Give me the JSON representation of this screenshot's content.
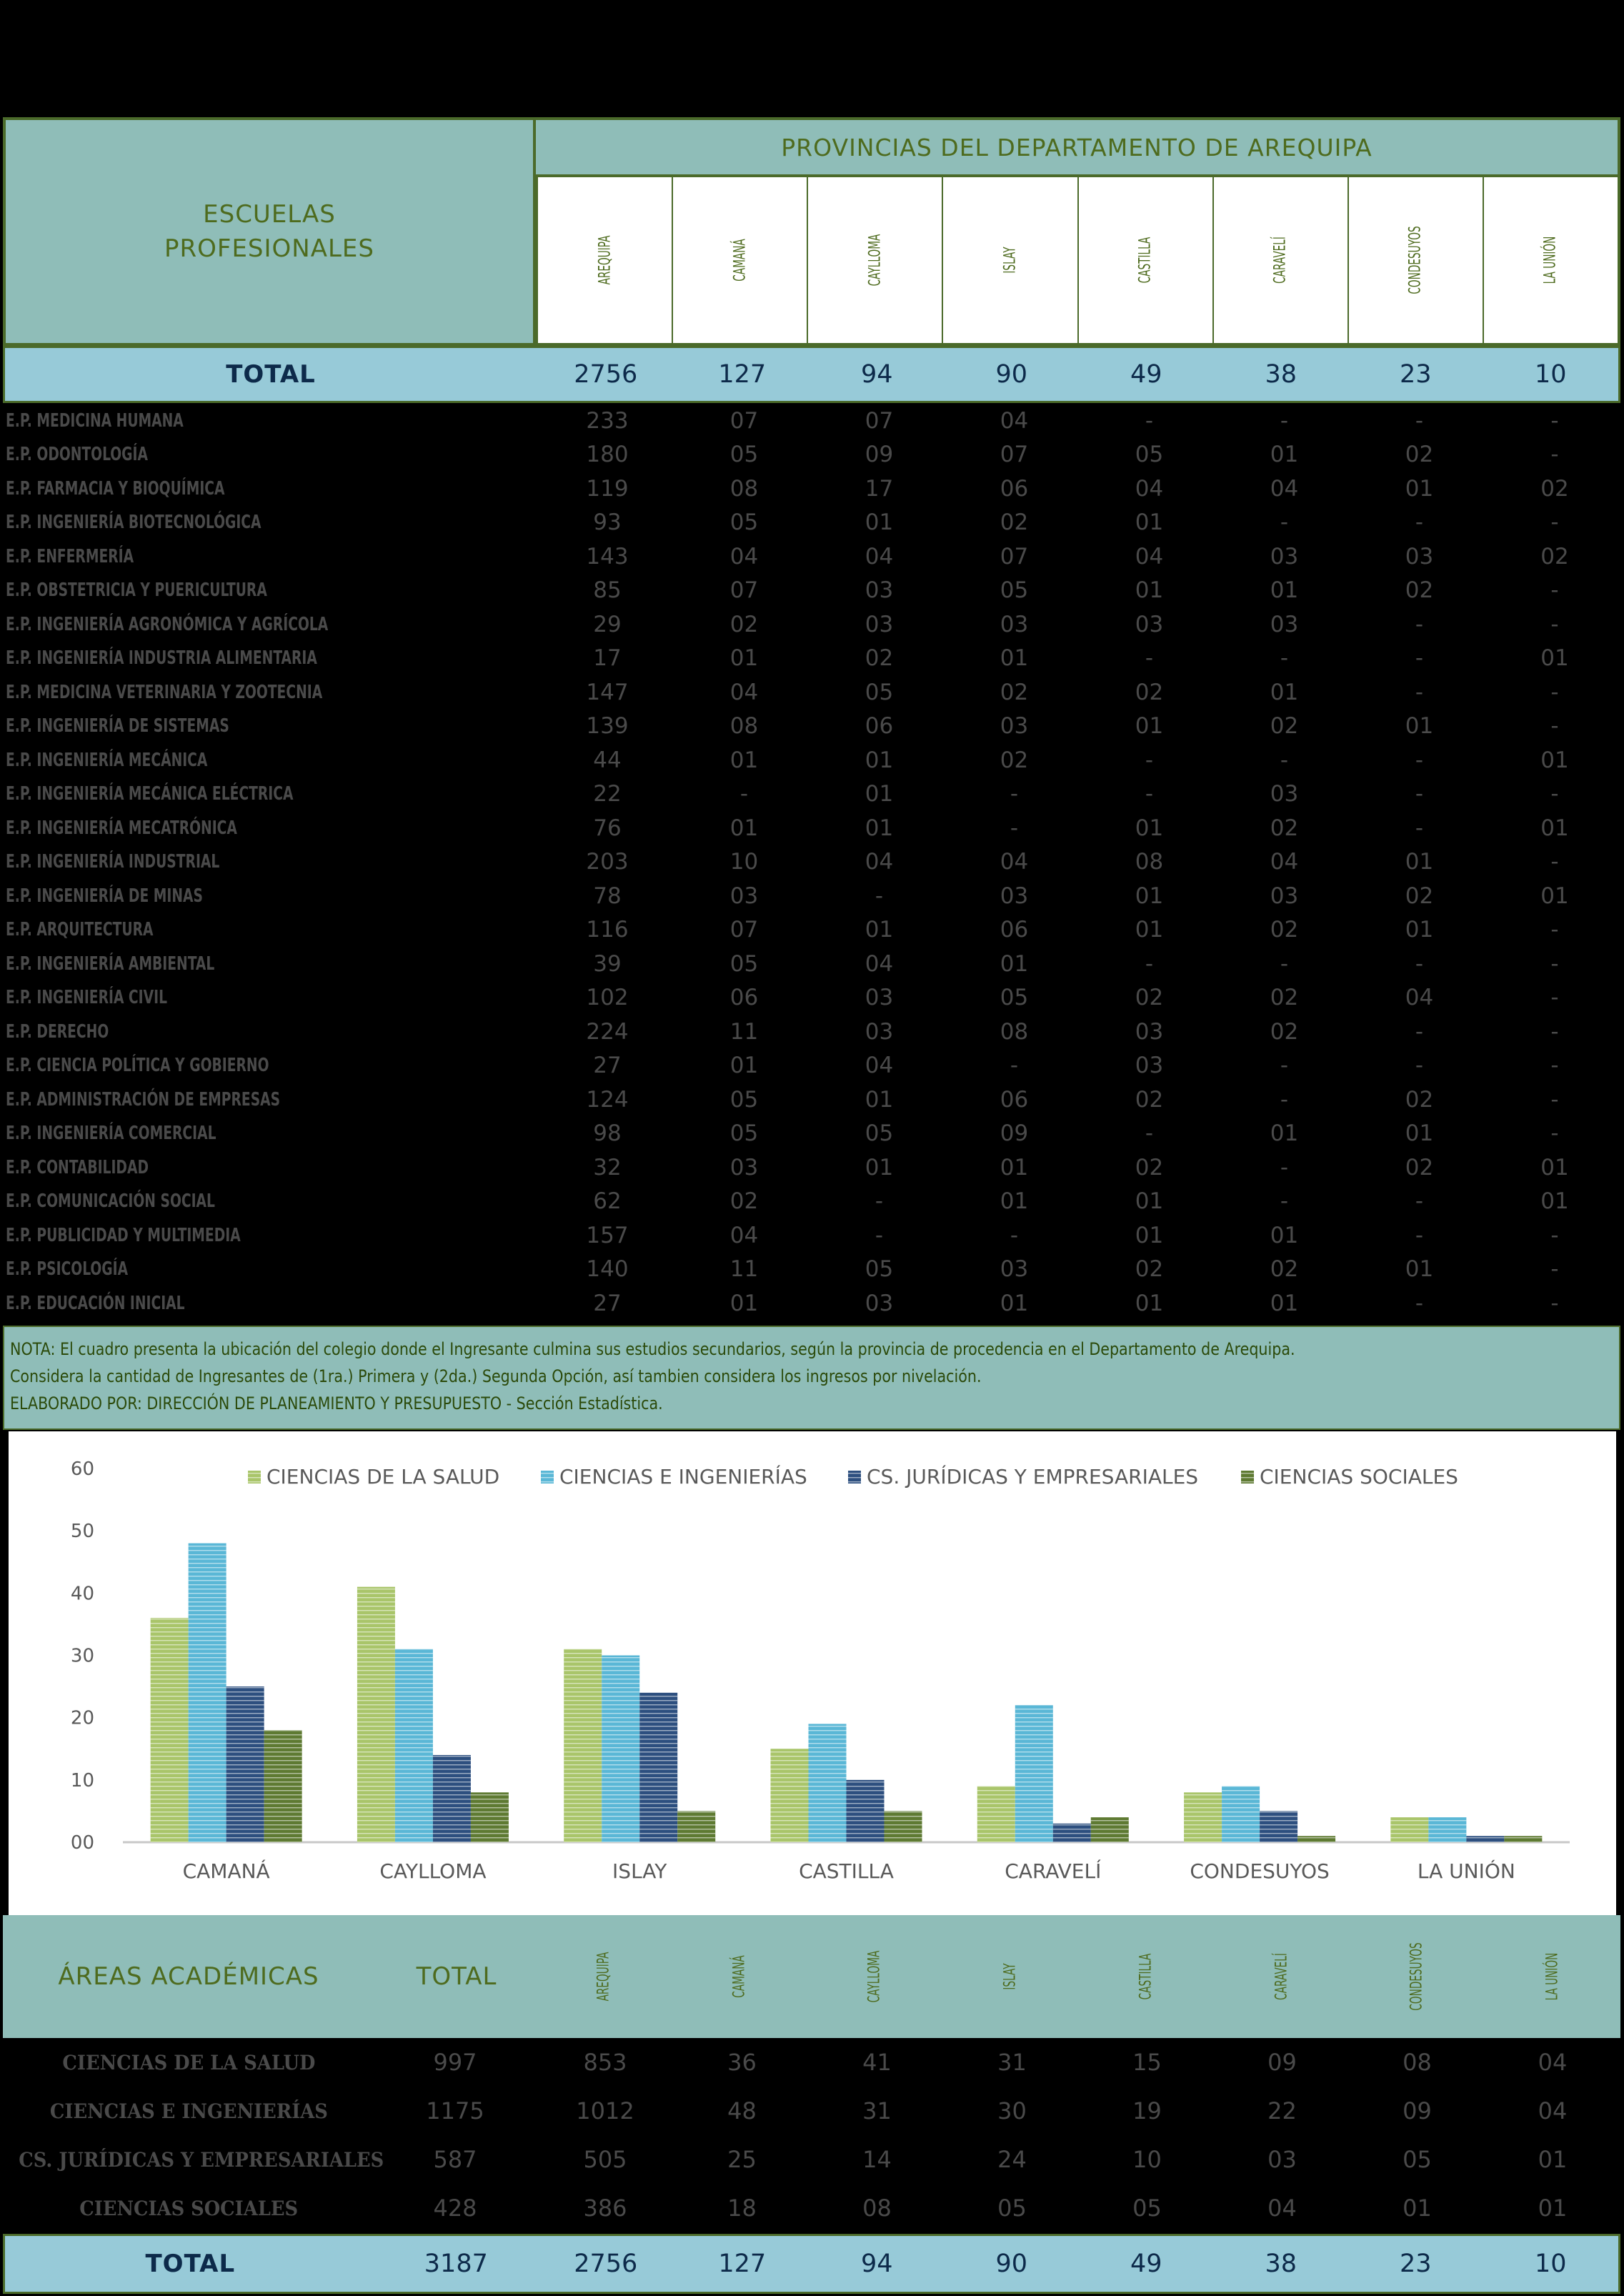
{
  "header": {
    "schools_label": "ESCUELAS\nPROFESIONALES",
    "provinces_title": "PROVINCIAS DEL DEPARTAMENTO DE AREQUIPA",
    "provinces": [
      "AREQUIPA",
      "CAMANÁ",
      "CAYLLOMA",
      "ISLAY",
      "CASTILLA",
      "CARAVELÍ",
      "CONDESUYOS",
      "LA UNIÓN"
    ]
  },
  "total_row": {
    "label": "TOTAL",
    "values": [
      "2756",
      "127",
      "94",
      "90",
      "49",
      "38",
      "23",
      "10"
    ]
  },
  "schools": [
    {
      "name": "E.P. MEDICINA HUMANA",
      "values": [
        "233",
        "07",
        "07",
        "04",
        "-",
        "-",
        "-",
        "-"
      ]
    },
    {
      "name": "E.P. ODONTOLOGÍA",
      "values": [
        "180",
        "05",
        "09",
        "07",
        "05",
        "01",
        "02",
        "-"
      ]
    },
    {
      "name": "E.P. FARMACIA Y BIOQUÍMICA",
      "values": [
        "119",
        "08",
        "17",
        "06",
        "04",
        "04",
        "01",
        "02"
      ]
    },
    {
      "name": "E.P. INGENIERÍA BIOTECNOLÓGICA",
      "values": [
        "93",
        "05",
        "01",
        "02",
        "01",
        "-",
        "-",
        "-"
      ]
    },
    {
      "name": "E.P. ENFERMERÍA",
      "values": [
        "143",
        "04",
        "04",
        "07",
        "04",
        "03",
        "03",
        "02"
      ]
    },
    {
      "name": "E.P. OBSTETRICIA Y PUERICULTURA",
      "values": [
        "85",
        "07",
        "03",
        "05",
        "01",
        "01",
        "02",
        "-"
      ]
    },
    {
      "name": "E.P. INGENIERÍA AGRONÓMICA Y AGRÍCOLA",
      "values": [
        "29",
        "02",
        "03",
        "03",
        "03",
        "03",
        "-",
        "-"
      ]
    },
    {
      "name": "E.P. INGENIERÍA INDUSTRIA ALIMENTARIA",
      "values": [
        "17",
        "01",
        "02",
        "01",
        "-",
        "-",
        "-",
        "01"
      ]
    },
    {
      "name": "E.P. MEDICINA VETERINARIA Y ZOOTECNIA",
      "values": [
        "147",
        "04",
        "05",
        "02",
        "02",
        "01",
        "-",
        "-"
      ]
    },
    {
      "name": "E.P. INGENIERÍA DE SISTEMAS",
      "values": [
        "139",
        "08",
        "06",
        "03",
        "01",
        "02",
        "01",
        "-"
      ]
    },
    {
      "name": "E.P. INGENIERÍA MECÁNICA",
      "values": [
        "44",
        "01",
        "01",
        "02",
        "-",
        "-",
        "-",
        "01"
      ]
    },
    {
      "name": "E.P. INGENIERÍA MECÁNICA ELÉCTRICA",
      "values": [
        "22",
        "-",
        "01",
        "-",
        "-",
        "03",
        "-",
        "-"
      ]
    },
    {
      "name": "E.P. INGENIERÍA MECATRÓNICA",
      "values": [
        "76",
        "01",
        "01",
        "-",
        "01",
        "02",
        "-",
        "01"
      ]
    },
    {
      "name": "E.P. INGENIERÍA INDUSTRIAL",
      "values": [
        "203",
        "10",
        "04",
        "04",
        "08",
        "04",
        "01",
        "-"
      ]
    },
    {
      "name": "E.P. INGENIERÍA DE MINAS",
      "values": [
        "78",
        "03",
        "-",
        "03",
        "01",
        "03",
        "02",
        "01"
      ]
    },
    {
      "name": "E.P. ARQUITECTURA",
      "values": [
        "116",
        "07",
        "01",
        "06",
        "01",
        "02",
        "01",
        "-"
      ]
    },
    {
      "name": "E.P. INGENIERÍA AMBIENTAL",
      "values": [
        "39",
        "05",
        "04",
        "01",
        "-",
        "-",
        "-",
        "-"
      ]
    },
    {
      "name": "E.P. INGENIERÍA CIVIL",
      "values": [
        "102",
        "06",
        "03",
        "05",
        "02",
        "02",
        "04",
        "-"
      ]
    },
    {
      "name": "E.P. DERECHO",
      "values": [
        "224",
        "11",
        "03",
        "08",
        "03",
        "02",
        "-",
        "-"
      ]
    },
    {
      "name": "E.P. CIENCIA POLÍTICA Y GOBIERNO",
      "values": [
        "27",
        "01",
        "04",
        "-",
        "03",
        "-",
        "-",
        "-"
      ]
    },
    {
      "name": "E.P. ADMINISTRACIÓN DE EMPRESAS",
      "values": [
        "124",
        "05",
        "01",
        "06",
        "02",
        "-",
        "02",
        "-"
      ]
    },
    {
      "name": "E.P. INGENIERÍA COMERCIAL",
      "values": [
        "98",
        "05",
        "05",
        "09",
        "-",
        "01",
        "01",
        "-"
      ]
    },
    {
      "name": "E.P. CONTABILIDAD",
      "values": [
        "32",
        "03",
        "01",
        "01",
        "02",
        "-",
        "02",
        "01"
      ]
    },
    {
      "name": "E.P. COMUNICACIÓN SOCIAL",
      "values": [
        "62",
        "02",
        "-",
        "01",
        "01",
        "-",
        "-",
        "01"
      ]
    },
    {
      "name": "E.P. PUBLICIDAD Y MULTIMEDIA",
      "values": [
        "157",
        "04",
        "-",
        "-",
        "01",
        "01",
        "-",
        "-"
      ]
    },
    {
      "name": "E.P. PSICOLOGÍA",
      "values": [
        "140",
        "11",
        "05",
        "03",
        "02",
        "02",
        "01",
        "-"
      ]
    },
    {
      "name": "E.P. EDUCACIÓN INICIAL",
      "values": [
        "27",
        "01",
        "03",
        "01",
        "01",
        "01",
        "-",
        "-"
      ]
    }
  ],
  "notes": [
    "NOTA: El cuadro presenta la ubicación del colegio donde el Ingresante culmina sus estudios secundarios, según la provincia de procedencia en el Departamento de Arequipa.",
    "Considera la cantidad de Ingresantes de (1ra.) Primera y (2da.) Segunda Opción, así tambien considera los ingresos por nivelación.",
    "ELABORADO POR: DIRECCIÓN DE PLANEAMIENTO Y PRESUPUESTO - Sección Estadística."
  ],
  "chart_data": {
    "type": "bar",
    "categories": [
      "CAMANÁ",
      "CAYLLOMA",
      "ISLAY",
      "CASTILLA",
      "CARAVELÍ",
      "CONDESUYOS",
      "LA UNIÓN"
    ],
    "series": [
      {
        "name": "CIENCIAS DE LA SALUD",
        "values": [
          36,
          41,
          31,
          15,
          9,
          8,
          4
        ],
        "color": "#a9c56a"
      },
      {
        "name": "CIENCIAS E INGENIERÍAS",
        "values": [
          48,
          31,
          30,
          19,
          22,
          9,
          4
        ],
        "color": "#5ab7d6"
      },
      {
        "name": "CS. JURÍDICAS Y EMPRESARIALES",
        "values": [
          25,
          14,
          24,
          10,
          3,
          5,
          1
        ],
        "color": "#2d4f7f"
      },
      {
        "name": "CIENCIAS SOCIALES",
        "values": [
          18,
          8,
          5,
          5,
          4,
          1,
          1
        ],
        "color": "#5e7a32"
      }
    ],
    "y_ticks": [
      "00",
      "10",
      "20",
      "30",
      "40",
      "50",
      "60"
    ],
    "ylim": [
      0,
      60
    ],
    "legend_position": "top",
    "grid": false
  },
  "areas": {
    "header_label": "ÁREAS ACADÉMICAS",
    "total_label": "TOTAL",
    "rows": [
      {
        "name": "CIENCIAS DE LA SALUD",
        "total": "997",
        "values": [
          "853",
          "36",
          "41",
          "31",
          "15",
          "09",
          "08",
          "04"
        ]
      },
      {
        "name": "CIENCIAS E INGENIERÍAS",
        "total": "1175",
        "values": [
          "1012",
          "48",
          "31",
          "30",
          "19",
          "22",
          "09",
          "04"
        ]
      },
      {
        "name": "CS. JURÍDICAS Y EMPRESARIALES",
        "total": "587",
        "values": [
          "505",
          "25",
          "14",
          "24",
          "10",
          "03",
          "05",
          "01"
        ]
      },
      {
        "name": "CIENCIAS SOCIALES",
        "total": "428",
        "values": [
          "386",
          "18",
          "08",
          "05",
          "05",
          "04",
          "01",
          "01"
        ]
      }
    ],
    "total_row": {
      "label": "TOTAL",
      "total": "3187",
      "values": [
        "2756",
        "127",
        "94",
        "90",
        "49",
        "38",
        "23",
        "10"
      ]
    }
  },
  "colors": {
    "header_bg": "#8fbdb8",
    "total_bg": "#97cad8",
    "border": "#4b6a2a",
    "header_text": "#4e6b1e",
    "total_text": "#0d2a4a"
  }
}
